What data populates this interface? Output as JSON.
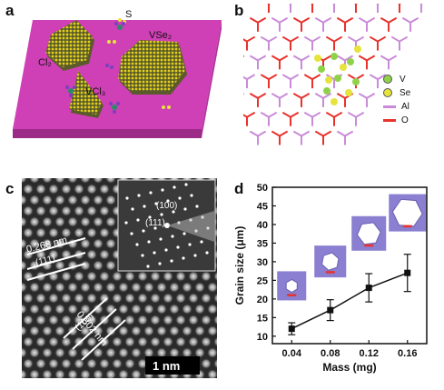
{
  "panels": {
    "a": {
      "letter": "a",
      "labels": {
        "s": "S",
        "vse2": "VSe₂",
        "cl2": "Cl₂",
        "vcl3": "VCl₃"
      },
      "colors": {
        "substrate": "#cf3fb5",
        "flake": "#c8b400"
      }
    },
    "b": {
      "letter": "b",
      "legend": [
        {
          "label": "V",
          "color": "#8fd24a",
          "icon": "sphere-icon"
        },
        {
          "label": "Se",
          "color": "#e6e33a",
          "icon": "sphere-icon"
        },
        {
          "label": "Al",
          "color": "#c98bd8",
          "icon": "bond-icon"
        },
        {
          "label": "O",
          "color": "#e8322c",
          "icon": "bond-icon"
        }
      ]
    },
    "c": {
      "letter": "c",
      "inset_labels": [
        "(100)",
        "(111)"
      ],
      "annotations": [
        "0.268 nm",
        "(111)",
        "0.302 nm",
        "(100)"
      ],
      "scalebar": "1 nm"
    },
    "d": {
      "letter": "d"
    }
  },
  "chart_data": {
    "type": "line",
    "xlabel": "Mass (mg)",
    "ylabel": "Grain size (μm)",
    "x": [
      0.04,
      0.08,
      0.12,
      0.16
    ],
    "x_ticks": [
      "0.04",
      "0.08",
      "0.12",
      "0.16"
    ],
    "xlim": [
      0.02,
      0.18
    ],
    "y_ticks": [
      "10",
      "15",
      "20",
      "25",
      "30",
      "35",
      "40",
      "45",
      "50"
    ],
    "ylim": [
      8,
      50
    ],
    "series": [
      {
        "values": [
          12,
          17,
          23,
          27
        ],
        "errors": [
          1.6,
          2.8,
          3.8,
          5.0
        ]
      }
    ],
    "marker_color": "#111111",
    "inset_color": "#8a7fd0",
    "scalebar_color": "#e8322c"
  }
}
